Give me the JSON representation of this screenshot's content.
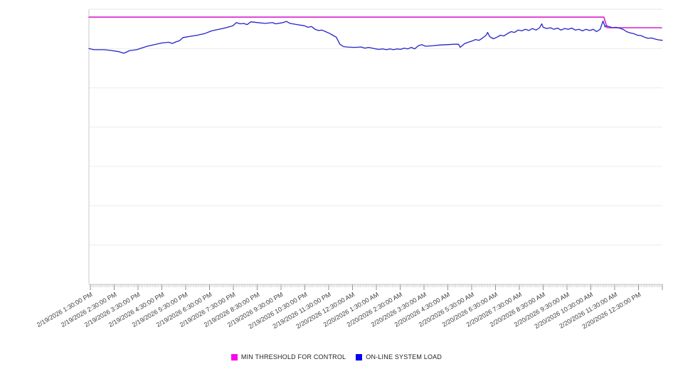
{
  "chart_data": {
    "type": "line",
    "title": "",
    "xlabel": "",
    "ylabel": "",
    "grid": "horizontal",
    "xlim": [
      -0.06,
      24.0
    ],
    "x_unit": "hours since first labeled tick (2/19/2026 1:30:00 PM)",
    "y_axis": {
      "labels_visible": false,
      "ylim": [
        0,
        7
      ],
      "note": "no y-axis tick labels shown; values estimated in gridline units (7 horizontal gridline intervals)"
    },
    "x_axis": {
      "hour_ticks": 25,
      "minor_ticks_per_hour": 15,
      "tick_labels": [
        "2/19/2026 1:30:00 PM",
        "2/19/2026 2:30:00 PM",
        "2/19/2026 3:30:00 PM",
        "2/19/2026 4:30:00 PM",
        "2/19/2026 5:30:00 PM",
        "2/19/2026 6:30:00 PM",
        "2/19/2026 7:30:00 PM",
        "2/19/2026 8:30:00 PM",
        "2/19/2026 9:30:00 PM",
        "2/19/2026 10:30:00 PM",
        "2/19/2026 11:30:00 PM",
        "2/20/2026 12:30:00 AM",
        "2/20/2026 1:30:00 AM",
        "2/20/2026 2:30:00 AM",
        "2/20/2026 3:30:00 AM",
        "2/20/2026 4:30:00 AM",
        "2/20/2026 5:30:00 AM",
        "2/20/2026 6:30:00 AM",
        "2/20/2026 7:30:00 AM",
        "2/20/2026 8:30:00 AM",
        "2/20/2026 9:30:00 AM",
        "2/20/2026 10:30:00 AM",
        "2/20/2026 11:30:00 AM",
        "2/20/2026 12:30:00 PM"
      ]
    },
    "legend": {
      "position": "bottom-center",
      "items": [
        {
          "label": "MIN THRESHOLD FOR CONTROL",
          "color": "#fb00f0"
        },
        {
          "label": "ON-LINE SYSTEM LOAD",
          "color": "#0000eb"
        }
      ]
    },
    "series": [
      {
        "name": "MIN THRESHOLD FOR CONTROL",
        "color": "#dc1fd0",
        "width": 1.6,
        "points": [
          [
            -0.06,
            6.8
          ],
          [
            21.55,
            6.8
          ],
          [
            21.68,
            6.53
          ],
          [
            23.97,
            6.53
          ]
        ]
      },
      {
        "name": "ON-LINE SYSTEM LOAD",
        "color": "#2424c8",
        "width": 1.3,
        "points": [
          [
            -0.06,
            6.0
          ],
          [
            0.15,
            5.97
          ],
          [
            0.6,
            5.97
          ],
          [
            0.9,
            5.95
          ],
          [
            1.2,
            5.92
          ],
          [
            1.41,
            5.88
          ],
          [
            1.65,
            5.95
          ],
          [
            1.95,
            5.97
          ],
          [
            2.09,
            6.0
          ],
          [
            2.39,
            6.06
          ],
          [
            2.69,
            6.1
          ],
          [
            2.99,
            6.14
          ],
          [
            3.29,
            6.16
          ],
          [
            3.44,
            6.13
          ],
          [
            3.59,
            6.17
          ],
          [
            3.74,
            6.2
          ],
          [
            3.89,
            6.28
          ],
          [
            4.19,
            6.31
          ],
          [
            4.49,
            6.34
          ],
          [
            4.79,
            6.38
          ],
          [
            5.09,
            6.45
          ],
          [
            5.39,
            6.49
          ],
          [
            5.69,
            6.53
          ],
          [
            5.98,
            6.58
          ],
          [
            6.13,
            6.66
          ],
          [
            6.28,
            6.63
          ],
          [
            6.43,
            6.64
          ],
          [
            6.58,
            6.61
          ],
          [
            6.73,
            6.68
          ],
          [
            7.03,
            6.66
          ],
          [
            7.33,
            6.64
          ],
          [
            7.63,
            6.66
          ],
          [
            7.78,
            6.63
          ],
          [
            8.08,
            6.66
          ],
          [
            8.23,
            6.69
          ],
          [
            8.38,
            6.64
          ],
          [
            8.68,
            6.61
          ],
          [
            8.98,
            6.58
          ],
          [
            9.13,
            6.54
          ],
          [
            9.28,
            6.56
          ],
          [
            9.43,
            6.49
          ],
          [
            9.58,
            6.46
          ],
          [
            9.72,
            6.47
          ],
          [
            9.87,
            6.43
          ],
          [
            10.02,
            6.39
          ],
          [
            10.17,
            6.34
          ],
          [
            10.32,
            6.29
          ],
          [
            10.47,
            6.11
          ],
          [
            10.62,
            6.05
          ],
          [
            10.77,
            6.04
          ],
          [
            11.07,
            6.03
          ],
          [
            11.37,
            6.04
          ],
          [
            11.52,
            6.01
          ],
          [
            11.67,
            6.03
          ],
          [
            11.97,
            5.99
          ],
          [
            12.12,
            5.98
          ],
          [
            12.27,
            5.99
          ],
          [
            12.42,
            5.97
          ],
          [
            12.57,
            5.99
          ],
          [
            12.72,
            5.97
          ],
          [
            12.87,
            5.99
          ],
          [
            13.02,
            5.98
          ],
          [
            13.17,
            6.01
          ],
          [
            13.32,
            5.99
          ],
          [
            13.47,
            6.03
          ],
          [
            13.61,
            5.99
          ],
          [
            13.76,
            6.07
          ],
          [
            13.91,
            6.1
          ],
          [
            14.06,
            6.06
          ],
          [
            14.36,
            6.07
          ],
          [
            14.66,
            6.09
          ],
          [
            14.96,
            6.1
          ],
          [
            15.26,
            6.11
          ],
          [
            15.45,
            6.11
          ],
          [
            15.52,
            6.03
          ],
          [
            15.71,
            6.13
          ],
          [
            15.86,
            6.16
          ],
          [
            16.01,
            6.19
          ],
          [
            16.16,
            6.23
          ],
          [
            16.31,
            6.21
          ],
          [
            16.46,
            6.27
          ],
          [
            16.61,
            6.34
          ],
          [
            16.67,
            6.41
          ],
          [
            16.76,
            6.3
          ],
          [
            16.91,
            6.25
          ],
          [
            17.06,
            6.29
          ],
          [
            17.21,
            6.34
          ],
          [
            17.35,
            6.32
          ],
          [
            17.5,
            6.38
          ],
          [
            17.65,
            6.43
          ],
          [
            17.8,
            6.41
          ],
          [
            17.95,
            6.47
          ],
          [
            18.1,
            6.45
          ],
          [
            18.25,
            6.49
          ],
          [
            18.4,
            6.46
          ],
          [
            18.55,
            6.51
          ],
          [
            18.7,
            6.47
          ],
          [
            18.85,
            6.53
          ],
          [
            18.94,
            6.63
          ],
          [
            19.0,
            6.54
          ],
          [
            19.15,
            6.51
          ],
          [
            19.3,
            6.53
          ],
          [
            19.45,
            6.49
          ],
          [
            19.6,
            6.52
          ],
          [
            19.75,
            6.47
          ],
          [
            19.9,
            6.51
          ],
          [
            20.05,
            6.49
          ],
          [
            20.2,
            6.52
          ],
          [
            20.35,
            6.47
          ],
          [
            20.5,
            6.49
          ],
          [
            20.65,
            6.45
          ],
          [
            20.8,
            6.49
          ],
          [
            20.95,
            6.46
          ],
          [
            21.1,
            6.49
          ],
          [
            21.24,
            6.43
          ],
          [
            21.39,
            6.49
          ],
          [
            21.51,
            6.7
          ],
          [
            21.6,
            6.55
          ],
          [
            21.66,
            6.58
          ],
          [
            21.75,
            6.56
          ],
          [
            21.9,
            6.53
          ],
          [
            22.05,
            6.54
          ],
          [
            22.2,
            6.52
          ],
          [
            22.35,
            6.49
          ],
          [
            22.5,
            6.43
          ],
          [
            22.65,
            6.4
          ],
          [
            22.8,
            6.38
          ],
          [
            22.95,
            6.34
          ],
          [
            23.1,
            6.33
          ],
          [
            23.25,
            6.29
          ],
          [
            23.4,
            6.26
          ],
          [
            23.55,
            6.27
          ],
          [
            23.7,
            6.24
          ],
          [
            23.85,
            6.22
          ],
          [
            24.0,
            6.21
          ]
        ]
      }
    ]
  }
}
